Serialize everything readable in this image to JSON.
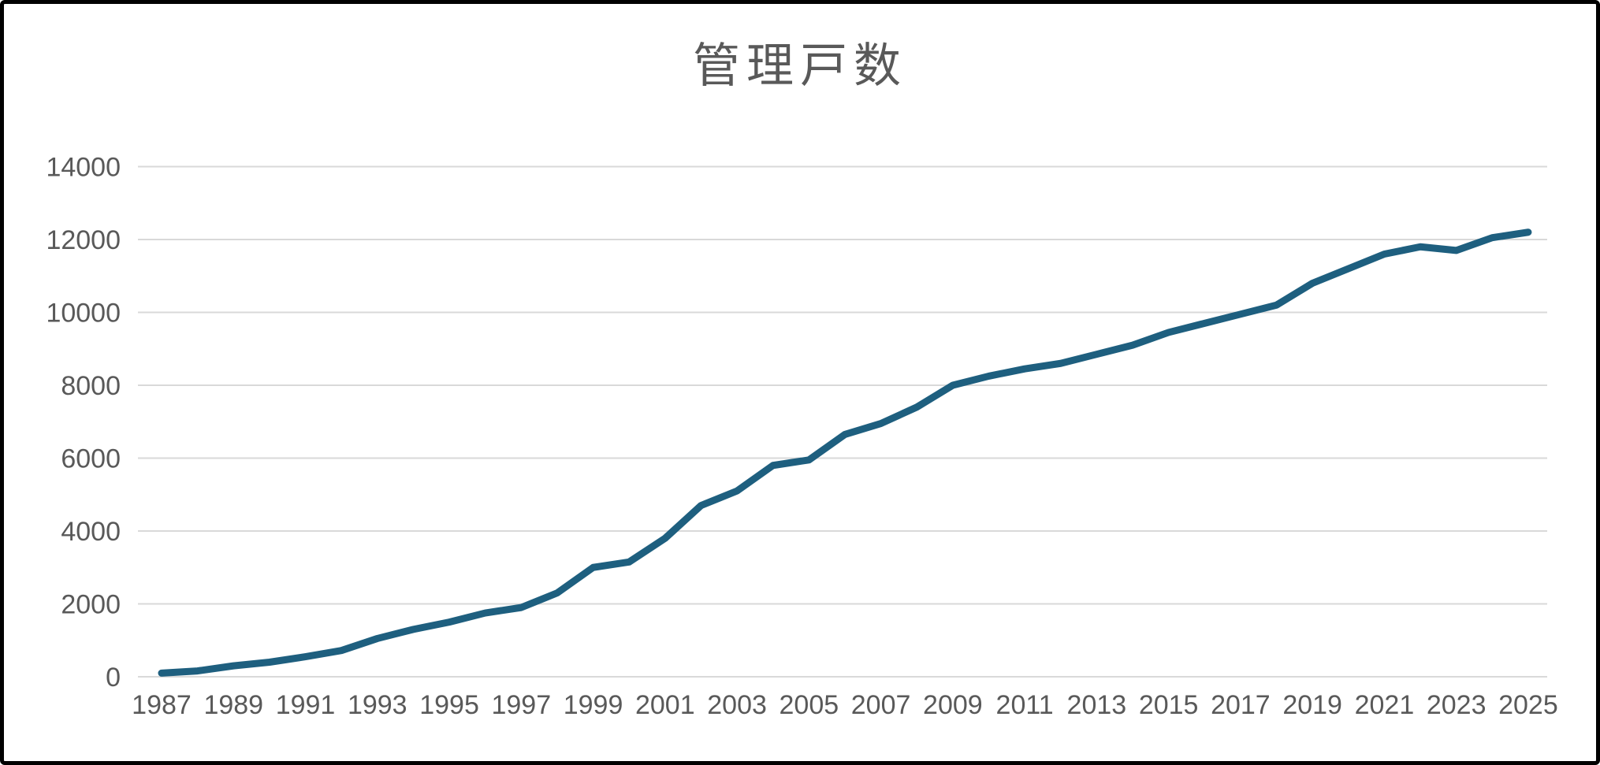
{
  "chart_data": {
    "type": "line",
    "title": "管理戸数",
    "categories": [
      1987,
      1988,
      1989,
      1990,
      1991,
      1992,
      1993,
      1994,
      1995,
      1996,
      1997,
      1998,
      1999,
      2000,
      2001,
      2002,
      2003,
      2004,
      2005,
      2006,
      2007,
      2008,
      2009,
      2010,
      2011,
      2012,
      2013,
      2014,
      2015,
      2016,
      2017,
      2018,
      2019,
      2020,
      2021,
      2022,
      2023,
      2024,
      2025
    ],
    "values": [
      100,
      160,
      300,
      400,
      550,
      720,
      1050,
      1300,
      1500,
      1750,
      1900,
      2300,
      3000,
      3150,
      3800,
      4700,
      5100,
      5800,
      5950,
      6650,
      6950,
      7400,
      8000,
      8250,
      8450,
      8600,
      8850,
      9100,
      9450,
      9700,
      9950,
      10200,
      10800,
      11200,
      11600,
      11800,
      11700,
      12050,
      12200
    ],
    "series_name": "管理戸数",
    "xlabel": "",
    "ylabel": "",
    "ylim": [
      0,
      14000
    ],
    "y_ticks": [
      0,
      2000,
      4000,
      6000,
      8000,
      10000,
      12000,
      14000
    ],
    "x_tick_labels": [
      1987,
      1989,
      1991,
      1993,
      1995,
      1997,
      1999,
      2001,
      2003,
      2005,
      2007,
      2009,
      2011,
      2013,
      2015,
      2017,
      2019,
      2021,
      2023,
      2025
    ],
    "grid": "horizontal",
    "legend": "none",
    "colors": {
      "line": "#1E5F7F",
      "gridline": "#D9D9D9",
      "tick_label": "#595959",
      "title": "#595959",
      "background": "#FFFFFF",
      "frame_border": "#000000"
    }
  }
}
